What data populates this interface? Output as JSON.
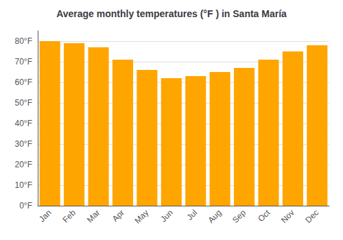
{
  "chart_data": {
    "type": "bar",
    "title": "Average monthly temperatures (°F ) in Santa María",
    "categories": [
      "Jan",
      "Feb",
      "Mar",
      "Apr",
      "May",
      "Jun",
      "Jul",
      "Aug",
      "Sep",
      "Oct",
      "Nov",
      "Dec"
    ],
    "values": [
      80,
      79,
      77,
      71,
      66,
      62,
      63,
      65,
      67,
      71,
      75,
      78
    ],
    "color": "#FFA500",
    "ylim": [
      0,
      85
    ],
    "yticks": [
      {
        "value": 0,
        "label": "0°F"
      },
      {
        "value": 10,
        "label": "10°F"
      },
      {
        "value": 20,
        "label": "20°F"
      },
      {
        "value": 30,
        "label": "30°F"
      },
      {
        "value": 40,
        "label": "40°F"
      },
      {
        "value": 50,
        "label": "50°F"
      },
      {
        "value": 60,
        "label": "60°F"
      },
      {
        "value": 70,
        "label": "70°F"
      },
      {
        "value": 80,
        "label": "80°F"
      }
    ],
    "grid": true
  }
}
